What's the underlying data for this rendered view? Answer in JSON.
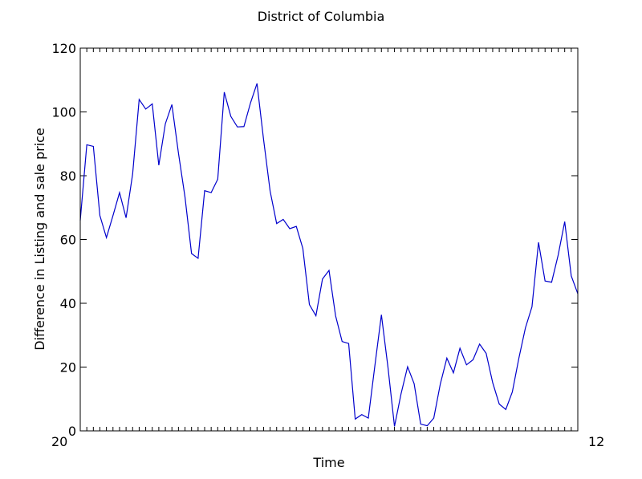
{
  "chart_data": {
    "type": "line",
    "title": "District of Columbia",
    "xlabel": "Time",
    "ylabel": "Difference in Listing and sale price",
    "ylim": [
      0,
      120
    ],
    "yticks": [
      0,
      20,
      40,
      60,
      80,
      100,
      120
    ],
    "grid": false,
    "x_tick_note": "x tick labels are dense and overlap into illegible text; only the first (starting 20…) and last (ending …12) fragments are readable",
    "x_tick_first": "20",
    "x_tick_last": "12",
    "color": "#0000cc",
    "series": [
      {
        "values": [
          66,
          89.7,
          89.2,
          67.5,
          60.6,
          67.5,
          74.7,
          66.8,
          80.5,
          103.9,
          100.9,
          102.5,
          83.3,
          96.3,
          102.3,
          87.1,
          73.3,
          55.6,
          54.1,
          75.3,
          74.7,
          78.9,
          106.2,
          98.6,
          95.3,
          95.4,
          102.8,
          108.9,
          91.4,
          75.2,
          65.0,
          66.3,
          63.4,
          64.1,
          57.2,
          39.6,
          36.1,
          47.6,
          50.3,
          36.1,
          28.0,
          27.4,
          3.7,
          5.1,
          4.0,
          20.4,
          36.4,
          20.0,
          1.4,
          11.6,
          20.1,
          14.8,
          2.1,
          1.6,
          4.0,
          14.7,
          22.8,
          18.2,
          25.9,
          20.7,
          22.3,
          27.2,
          24.3,
          15.1,
          8.4,
          6.7,
          12.2,
          22.8,
          32.3,
          38.9,
          59.1,
          47.0,
          46.6,
          55.1,
          65.6,
          48.6,
          43.0
        ]
      }
    ]
  }
}
